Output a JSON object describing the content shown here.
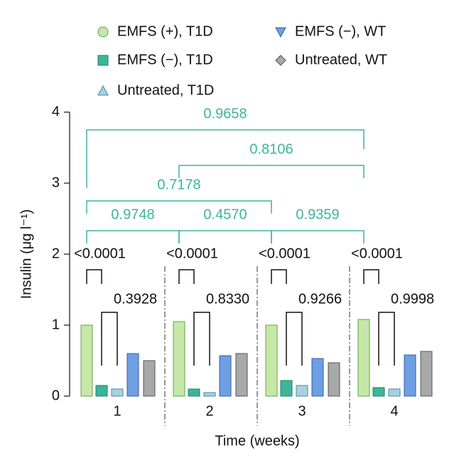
{
  "chart_data": {
    "type": "bar",
    "y_label": "Insulin (μg l⁻¹)",
    "x_label": "Time (weeks)",
    "categories": [
      "1",
      "2",
      "3",
      "4"
    ],
    "ylim": [
      0,
      4
    ],
    "yticks": [
      0,
      1,
      2,
      3,
      4
    ],
    "legend_position": "top",
    "series": [
      {
        "name": "EMFS (+), T1D",
        "color": "#c6e7a8",
        "stroke": "#5ea34a",
        "marker": "circle",
        "values": [
          1.0,
          1.05,
          1.0,
          1.08
        ]
      },
      {
        "name": "EMFS (−), T1D",
        "color": "#3db59a",
        "stroke": "#1f7f6a",
        "marker": "square",
        "values": [
          0.15,
          0.1,
          0.22,
          0.12
        ]
      },
      {
        "name": "Untreated, T1D",
        "color": "#a9d0e2",
        "stroke": "#4a87a3",
        "marker": "triangle",
        "values": [
          0.1,
          0.05,
          0.15,
          0.1
        ]
      },
      {
        "name": "EMFS (−), WT",
        "color": "#6e9fe2",
        "stroke": "#2f5fa8",
        "marker": "triangle-down",
        "values": [
          0.6,
          0.57,
          0.53,
          0.58
        ]
      },
      {
        "name": "Untreated, WT",
        "color": "#a8a8a8",
        "stroke": "#555555",
        "marker": "diamond",
        "values": [
          0.5,
          0.6,
          0.47,
          0.63
        ]
      }
    ],
    "comparisons": [
      {
        "label": "0.9658",
        "color": "#3db59a",
        "from": [
          0,
          0
        ],
        "to": [
          3,
          0
        ]
      },
      {
        "label": "0.8106",
        "color": "#3db59a",
        "from": [
          1,
          0
        ],
        "to": [
          3,
          0
        ]
      },
      {
        "label": "0.7178",
        "color": "#3db59a",
        "from": [
          0,
          0
        ],
        "to": [
          2,
          0
        ]
      },
      {
        "label": "0.9748",
        "color": "#3db59a",
        "from": [
          0,
          0
        ],
        "to": [
          1,
          0
        ]
      },
      {
        "label": "0.4570",
        "color": "#3db59a",
        "from": [
          1,
          0
        ],
        "to": [
          2,
          0
        ]
      },
      {
        "label": "0.9359",
        "color": "#3db59a",
        "from": [
          2,
          0
        ],
        "to": [
          3,
          0
        ]
      }
    ],
    "group_comparisons": [
      {
        "label": "<0.0001",
        "color": "#111111",
        "from": [
          0,
          0
        ],
        "to": [
          0,
          1
        ]
      },
      {
        "label": "0.3928",
        "color": "#111111",
        "from": [
          0,
          1
        ],
        "to": [
          0,
          2
        ]
      },
      {
        "label": "<0.0001",
        "color": "#111111",
        "from": [
          1,
          0
        ],
        "to": [
          1,
          1
        ]
      },
      {
        "label": "0.8330",
        "color": "#111111",
        "from": [
          1,
          1
        ],
        "to": [
          1,
          2
        ]
      },
      {
        "label": "<0.0001",
        "color": "#111111",
        "from": [
          2,
          0
        ],
        "to": [
          2,
          1
        ]
      },
      {
        "label": "0.9266",
        "color": "#111111",
        "from": [
          2,
          1
        ],
        "to": [
          2,
          2
        ]
      },
      {
        "label": "<0.0001",
        "color": "#111111",
        "from": [
          3,
          0
        ],
        "to": [
          3,
          1
        ]
      },
      {
        "label": "0.9998",
        "color": "#111111",
        "from": [
          3,
          1
        ],
        "to": [
          3,
          2
        ]
      }
    ]
  }
}
